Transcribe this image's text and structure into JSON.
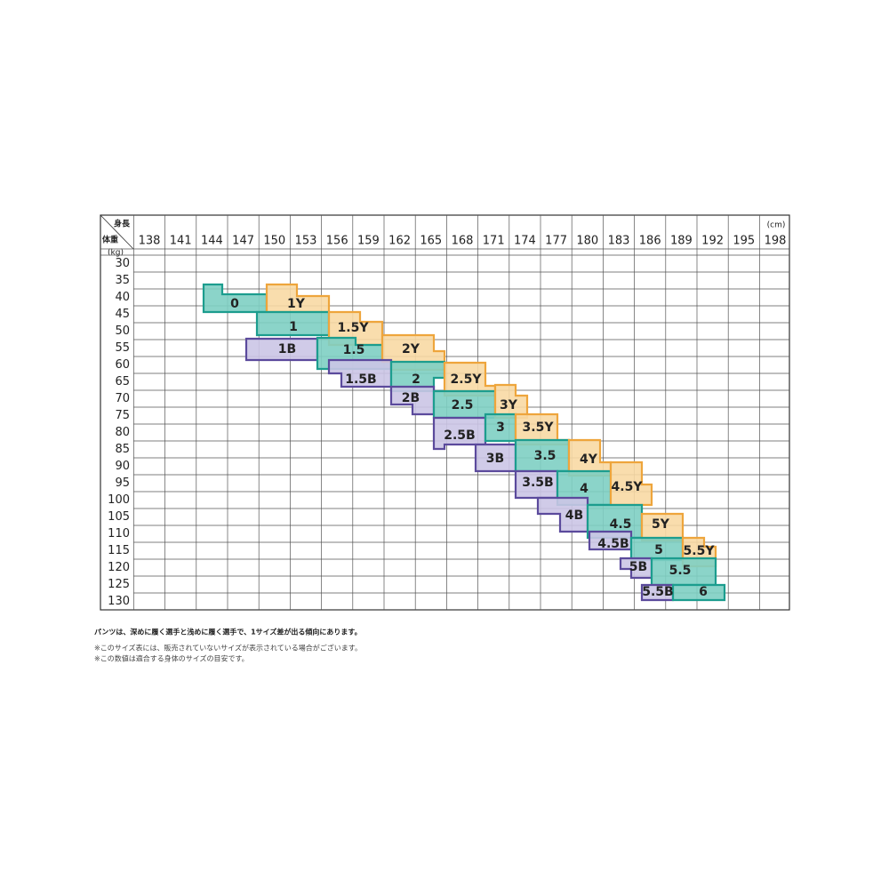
{
  "header": {
    "height_label": "身長",
    "weight_label": "体重",
    "height_unit": "(cm)",
    "weight_unit": "(kg)"
  },
  "columns": [
    138,
    141,
    144,
    147,
    150,
    153,
    156,
    159,
    162,
    165,
    168,
    171,
    174,
    177,
    180,
    183,
    186,
    189,
    192,
    195,
    198
  ],
  "rows": [
    30,
    35,
    40,
    45,
    50,
    55,
    60,
    65,
    70,
    75,
    80,
    85,
    90,
    95,
    100,
    105,
    110,
    115,
    120,
    125,
    130
  ],
  "sizes": [
    "0",
    "1Y",
    "1",
    "1.5Y",
    "1B",
    "1.5",
    "2Y",
    "1.5B",
    "2",
    "2.5Y",
    "2B",
    "2.5",
    "3Y",
    "2.5B",
    "3",
    "3.5Y",
    "3B",
    "3.5",
    "4Y",
    "3.5B",
    "4",
    "4.5Y",
    "4B",
    "4.5",
    "5Y",
    "4.5B",
    "5",
    "5.5Y",
    "5B",
    "5.5",
    "5.5B",
    "6"
  ],
  "notes": [
    "パンツは、深めに履く選手と浅めに履く選手で、1サイズ差が出る傾向にあります。",
    "※このサイズ表には、販売されていないサイズが表示されている場合がございます。",
    "※この数値は適合する身体のサイズの目安です。"
  ]
}
